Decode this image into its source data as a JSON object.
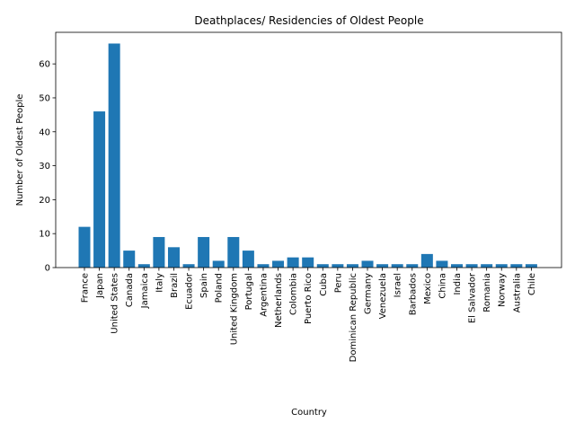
{
  "chart_data": {
    "type": "bar",
    "title": "Deathplaces/ Residencies of Oldest People",
    "xlabel": "Country",
    "ylabel": "Number of Oldest People",
    "ylim": [
      0,
      69.3
    ],
    "yticks": [
      0,
      10,
      20,
      30,
      40,
      50,
      60
    ],
    "grid": false,
    "categories": [
      "France",
      "Japan",
      "United States",
      "Canada",
      "Jamaica",
      "Italy",
      "Brazil",
      "Ecuador",
      "Spain",
      "Poland",
      "United Kingdom",
      "Portugal",
      "Argentina",
      "Netherlands",
      "Colombia",
      "Puerto Rico",
      "Cuba",
      "Peru",
      "Dominican Republic",
      "Germany",
      "Venezuela",
      "Israel",
      "Barbados",
      "Mexico",
      "China",
      "India",
      "El Salvador",
      "Romania",
      "Norway",
      "Australia",
      "Chile"
    ],
    "values": [
      12,
      46,
      66,
      5,
      1,
      9,
      6,
      1,
      9,
      2,
      9,
      5,
      1,
      2,
      3,
      3,
      1,
      1,
      1,
      2,
      1,
      1,
      1,
      4,
      2,
      1,
      1,
      1,
      1,
      1,
      1
    ],
    "bar_color": "#1f77b4"
  }
}
